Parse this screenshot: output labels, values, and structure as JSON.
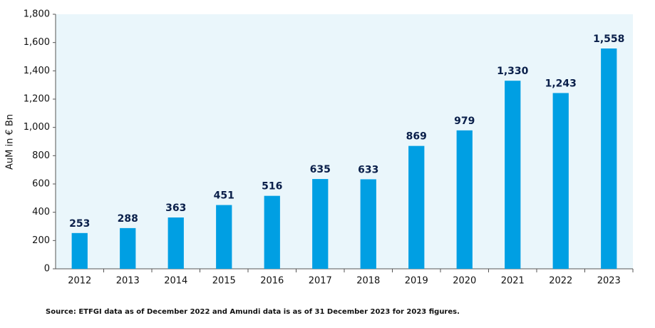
{
  "chart_data": {
    "type": "bar",
    "y_label": "AuM in € Bn",
    "source": "Source: ETFGI data as of December 2022 and Amundi data is as of 31 December 2023 for 2023 figures.",
    "categories": [
      "2012",
      "2013",
      "2014",
      "2015",
      "2016",
      "2017",
      "2018",
      "2019",
      "2020",
      "2021",
      "2022",
      "2023"
    ],
    "values": [
      253,
      288,
      363,
      451,
      516,
      635,
      633,
      869,
      979,
      1330,
      1243,
      1558
    ],
    "value_labels": [
      "253",
      "288",
      "363",
      "451",
      "516",
      "635",
      "633",
      "869",
      "979",
      "1,330",
      "1,243",
      "1,558"
    ],
    "color": "#009fe3",
    "ylim": [
      0,
      1800
    ],
    "yticks": [
      0,
      200,
      400,
      600,
      800,
      {
        "value": 1000,
        "label": "1,000"
      },
      {
        "value": 1200,
        "label": "1,200"
      },
      {
        "value": 1400,
        "label": "1,400"
      },
      {
        "value": 1600,
        "label": "1,600"
      },
      {
        "value": 1800,
        "label": "1,800"
      }
    ]
  }
}
